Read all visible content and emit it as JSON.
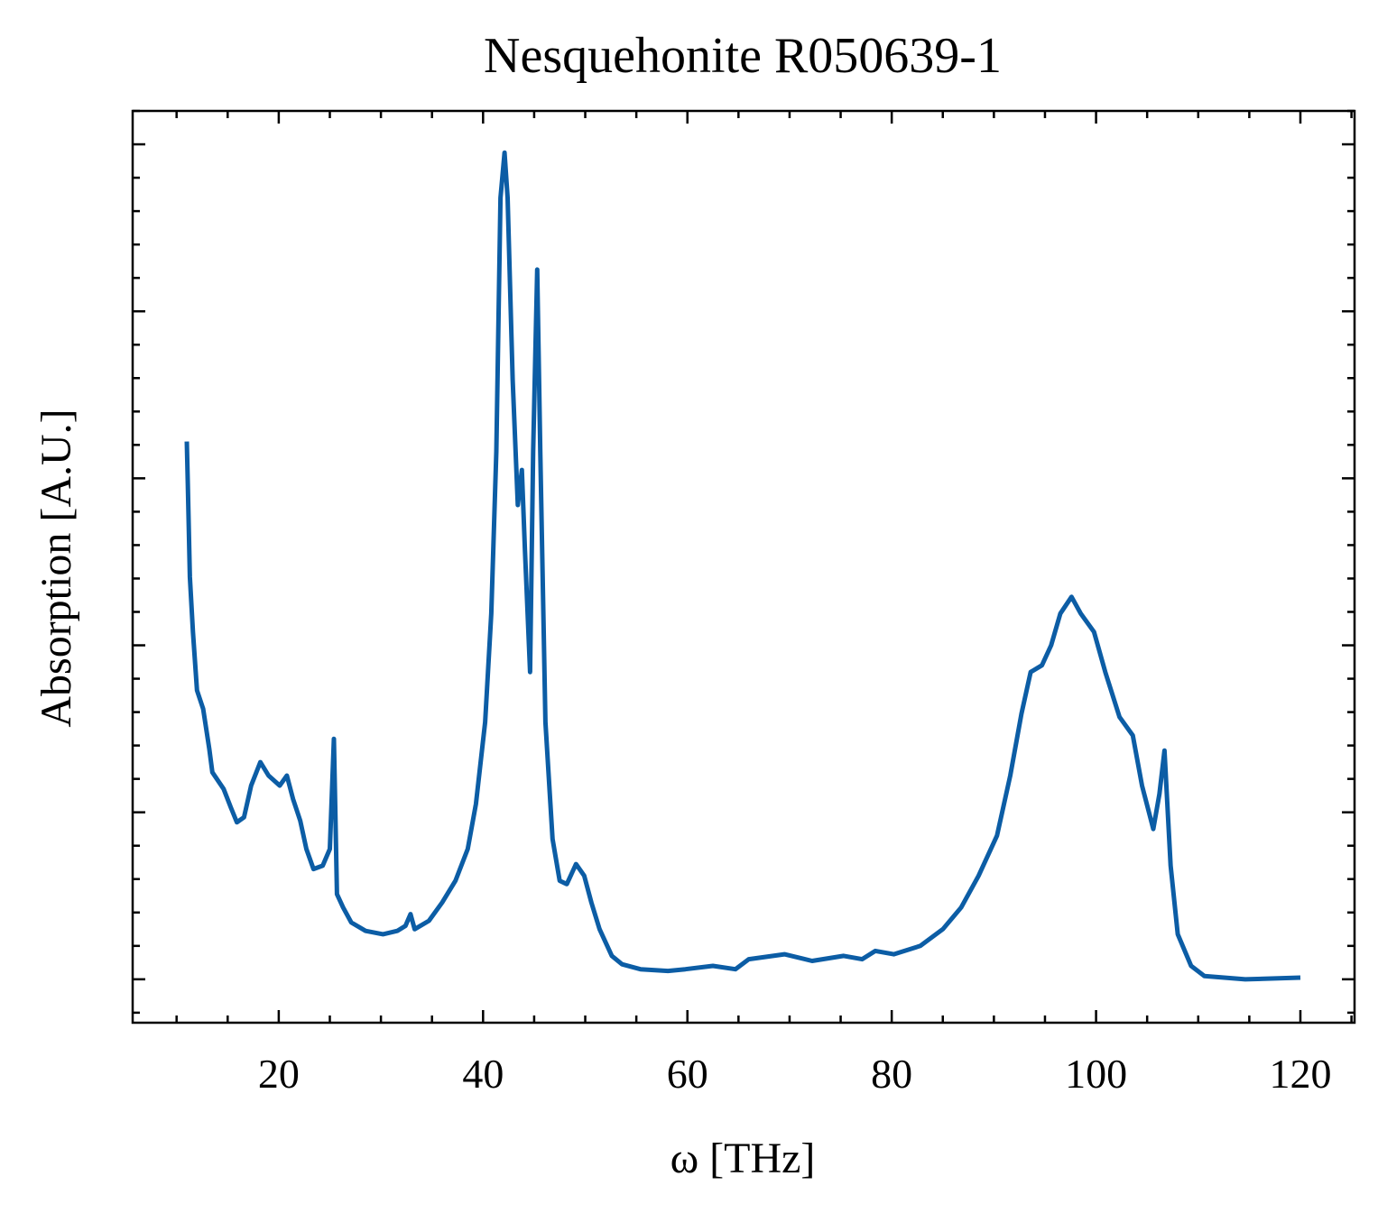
{
  "chart_data": {
    "type": "line",
    "title": "Nesquehonite R050639-1",
    "xlabel": "ω [THz]",
    "ylabel": "Absorption [A.U.]",
    "xlim": [
      5.7,
      125.3
    ],
    "ylim": [
      -0.26,
      5.2
    ],
    "xticks": [
      20,
      40,
      60,
      80,
      100,
      120
    ],
    "xminorticks": [
      10,
      15,
      25,
      30,
      35,
      45,
      50,
      55,
      65,
      70,
      75,
      85,
      90,
      95,
      105,
      110,
      115,
      125
    ],
    "yticks": [
      0,
      1,
      2,
      3,
      4,
      5
    ],
    "yminorticks": [
      -0.2,
      0.2,
      0.4,
      0.6,
      0.8,
      1.2,
      1.4,
      1.6,
      1.8,
      2.2,
      2.4,
      2.6,
      2.8,
      3.2,
      3.4,
      3.6,
      3.8,
      4.2,
      4.4,
      4.6,
      4.8,
      5.2
    ],
    "x": [
      11.0,
      11.1,
      11.3,
      11.6,
      12.0,
      12.6,
      13.2,
      13.5,
      14.6,
      15.3,
      15.9,
      16.6,
      17.3,
      18.2,
      19.0,
      20.1,
      20.8,
      21.4,
      22.1,
      22.7,
      23.4,
      24.3,
      25.0,
      25.4,
      25.7,
      26.3,
      27.1,
      28.5,
      30.2,
      31.6,
      32.4,
      32.9,
      33.3,
      34.7,
      36.0,
      37.3,
      38.5,
      39.3,
      40.2,
      40.8,
      41.3,
      41.7,
      42.1,
      42.4,
      42.9,
      43.4,
      43.8,
      44.1,
      44.6,
      44.9,
      45.3,
      45.6,
      46.1,
      46.8,
      47.5,
      48.2,
      49.1,
      49.9,
      50.6,
      51.4,
      52.6,
      53.6,
      55.4,
      58.1,
      59.8,
      62.5,
      64.7,
      66.0,
      69.5,
      72.2,
      75.3,
      77.1,
      78.4,
      80.2,
      82.8,
      85.0,
      86.8,
      88.5,
      90.3,
      91.6,
      92.7,
      93.6,
      94.7,
      95.6,
      96.5,
      97.6,
      98.5,
      99.8,
      100.9,
      102.3,
      103.6,
      104.5,
      105.6,
      106.2,
      106.7,
      107.3,
      108.0,
      109.3,
      110.6,
      114.6,
      120.0
    ],
    "series": [
      {
        "name": "R050639-1",
        "color": "#0c5da5",
        "values": [
          3.22,
          2.97,
          2.41,
          2.08,
          1.73,
          1.62,
          1.38,
          1.24,
          1.14,
          1.03,
          0.94,
          0.97,
          1.16,
          1.3,
          1.22,
          1.16,
          1.22,
          1.08,
          0.95,
          0.78,
          0.66,
          0.68,
          0.78,
          1.44,
          0.51,
          0.43,
          0.34,
          0.29,
          0.27,
          0.29,
          0.32,
          0.39,
          0.3,
          0.35,
          0.46,
          0.59,
          0.78,
          1.05,
          1.54,
          2.19,
          3.16,
          4.68,
          4.95,
          4.68,
          3.59,
          2.84,
          3.05,
          2.57,
          1.84,
          3.16,
          4.25,
          3.16,
          1.54,
          0.84,
          0.59,
          0.57,
          0.69,
          0.62,
          0.46,
          0.3,
          0.14,
          0.09,
          0.06,
          0.05,
          0.06,
          0.08,
          0.06,
          0.12,
          0.15,
          0.11,
          0.14,
          0.12,
          0.17,
          0.15,
          0.2,
          0.3,
          0.43,
          0.62,
          0.86,
          1.22,
          1.59,
          1.84,
          1.88,
          2.0,
          2.19,
          2.29,
          2.19,
          2.08,
          1.84,
          1.57,
          1.46,
          1.16,
          0.9,
          1.11,
          1.37,
          0.68,
          0.27,
          0.08,
          0.02,
          0.0,
          0.01
        ]
      }
    ]
  }
}
